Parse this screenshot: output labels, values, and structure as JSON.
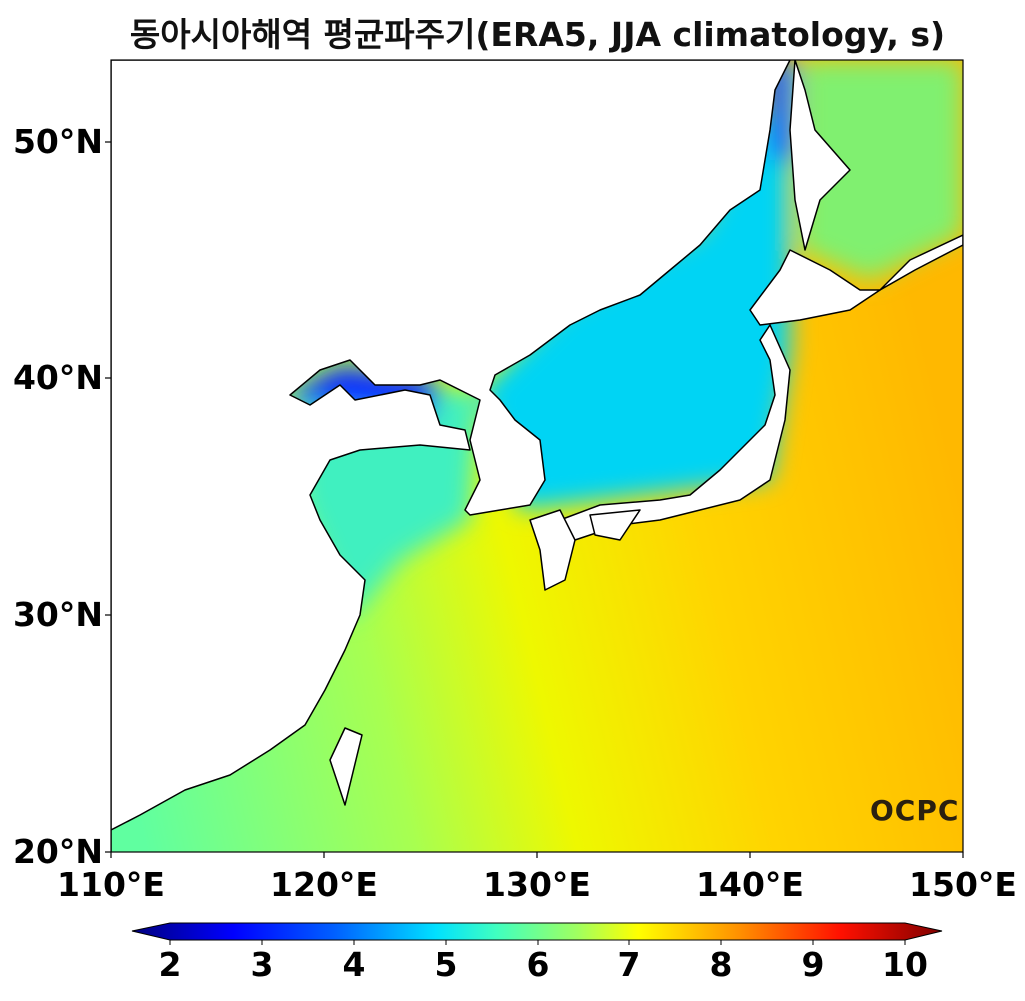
{
  "title": "동아시아해역 평균파주기(ERA5, JJA climatology, s)",
  "lat_ticks": [
    "50°N",
    "40°N",
    "30°N",
    "20°N"
  ],
  "lon_ticks": [
    "110°E",
    "120°E",
    "130°E",
    "140°E",
    "150°E"
  ],
  "colorbar": {
    "ticks": [
      "2",
      "3",
      "4",
      "5",
      "6",
      "7",
      "8",
      "9",
      "10"
    ],
    "min": 2,
    "max": 10,
    "extend": "both",
    "colormap": "jet"
  },
  "logo": "OCPC",
  "colors": {
    "land": "#ffffff",
    "coast": "#000000"
  }
}
